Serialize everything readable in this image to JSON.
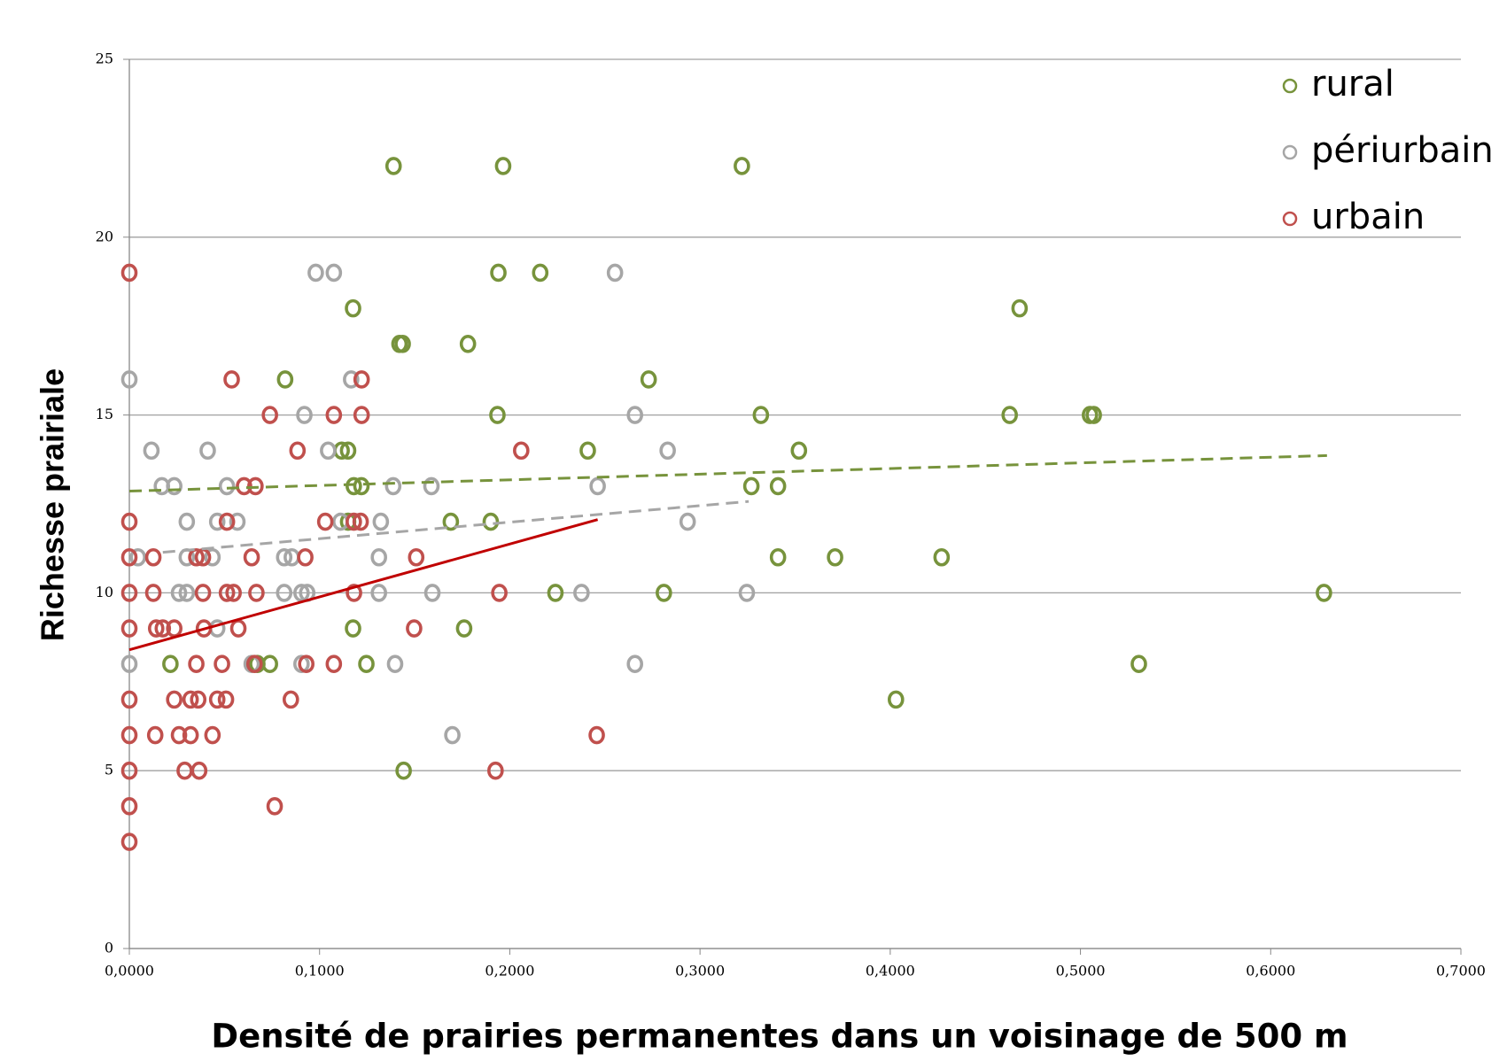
{
  "chart_data": {
    "type": "scatter",
    "x_label": "Densité de prairies permanentes dans un voisinage de 500 m",
    "y_label": "Richesse prairiale",
    "xlim": [
      0,
      0.7
    ],
    "ylim": [
      0,
      25
    ],
    "xticks": [
      {
        "value": 0,
        "label": "0,0000"
      },
      {
        "value": 0.1,
        "label": "0,1000"
      },
      {
        "value": 0.2,
        "label": "0,2000"
      },
      {
        "value": 0.3,
        "label": "0,3000"
      },
      {
        "value": 0.4,
        "label": "0,4000"
      },
      {
        "value": 0.5,
        "label": "0,5000"
      },
      {
        "value": 0.6,
        "label": "0,6000"
      },
      {
        "value": 0.7,
        "label": "0,7000"
      }
    ],
    "yticks": [
      0,
      5,
      10,
      15,
      20,
      25
    ],
    "grid": true,
    "legend": "top-right",
    "series": [
      {
        "name": "rural",
        "color": "#77933c",
        "x": [
          0.1389,
          0.1965,
          0.322,
          0.194,
          0.216,
          0.1176,
          0.468,
          0.142,
          0.1437,
          0.178,
          0.0819,
          0.273,
          0.1935,
          0.332,
          0.4628,
          0.505,
          0.507,
          0.1116,
          0.115,
          0.241,
          0.352,
          0.118,
          0.122,
          0.327,
          0.341,
          0.115,
          0.169,
          0.19,
          0.341,
          0.371,
          0.427,
          0.224,
          0.281,
          0.628,
          0.1176,
          0.176,
          0.0216,
          0.0673,
          0.0739,
          0.1246,
          0.5307,
          0.403,
          0.1442
        ],
        "values": [
          22,
          22,
          22,
          19,
          19,
          18,
          18,
          17,
          17,
          17,
          16,
          16,
          15,
          15,
          15,
          15,
          15,
          14,
          14,
          14,
          14,
          13,
          13,
          13,
          13,
          12,
          12,
          12,
          11,
          11,
          11,
          10,
          10,
          10,
          9,
          9,
          8,
          8,
          8,
          8,
          8,
          7,
          5
        ],
        "trend": {
          "x": [
            0,
            0.6296
          ],
          "y": [
            12.86,
            13.86
          ],
          "dashed": true,
          "color": "#77933c"
        }
      },
      {
        "name": "périurbain",
        "color": "#a6a6a6",
        "x": [
          0.098,
          0.1075,
          0.2553,
          0,
          0.1166,
          0.092,
          0.2658,
          0.0116,
          0.0412,
          0.1045,
          0.283,
          0.0171,
          0.0236,
          0.0513,
          0.1387,
          0.1588,
          0.2462,
          0.0302,
          0.0462,
          0.0568,
          0.111,
          0.1322,
          0.2935,
          0.0045,
          0.0302,
          0.0437,
          0.0814,
          0.0854,
          0.1312,
          0.0261,
          0.0302,
          0.0814,
          0.0905,
          0.0935,
          0.1312,
          0.1593,
          0.2377,
          0.3246,
          0.0462,
          0,
          0.0643,
          0.0905,
          0.1397,
          0.2658,
          0.1698
        ],
        "values": [
          19,
          19,
          19,
          16,
          16,
          15,
          15,
          14,
          14,
          14,
          14,
          13,
          13,
          13,
          13,
          13,
          13,
          12,
          12,
          12,
          12,
          12,
          12,
          11,
          11,
          11,
          11,
          11,
          11,
          10,
          10,
          10,
          10,
          10,
          10,
          10,
          10,
          10,
          9,
          8,
          8,
          8,
          8,
          8,
          6
        ],
        "trend": {
          "x": [
            0.0176,
            0.3256
          ],
          "y": [
            11.14,
            12.57
          ],
          "dashed": true,
          "color": "#a6a6a6"
        }
      },
      {
        "name": "urbain",
        "color": "#c0504d",
        "x": [
          0,
          0.0538,
          0.1221,
          0.0739,
          0.1075,
          0.1221,
          0.0884,
          0.206,
          0.0603,
          0.0663,
          0,
          0.0513,
          0.103,
          0.118,
          0.1216,
          0,
          0.0126,
          0.0352,
          0.0387,
          0.0643,
          0.0925,
          0.1508,
          0,
          0.0126,
          0.0387,
          0.0513,
          0.0548,
          0.0668,
          0.1181,
          0.1945,
          0,
          0.0141,
          0.0176,
          0.0236,
          0.0392,
          0.0573,
          0.1497,
          0.0352,
          0.0487,
          0.0658,
          0.093,
          0.1075,
          0,
          0.0236,
          0.0322,
          0.0362,
          0.0462,
          0.0508,
          0.0849,
          0,
          0.0136,
          0.0261,
          0.0322,
          0.0437,
          0.2457,
          0,
          0.0291,
          0.0367,
          0.1925,
          0,
          0.0764,
          0
        ],
        "values": [
          19,
          16,
          16,
          15,
          15,
          15,
          14,
          14,
          13,
          13,
          12,
          12,
          12,
          12,
          12,
          11,
          11,
          11,
          11,
          11,
          11,
          11,
          10,
          10,
          10,
          10,
          10,
          10,
          10,
          10,
          9,
          9,
          9,
          9,
          9,
          9,
          9,
          8,
          8,
          8,
          8,
          8,
          7,
          7,
          7,
          7,
          7,
          7,
          7,
          6,
          6,
          6,
          6,
          6,
          6,
          5,
          5,
          5,
          5,
          4,
          4,
          3
        ],
        "trend": {
          "x": [
            0,
            0.2462
          ],
          "y": [
            8.4,
            12.06
          ],
          "dashed": false,
          "color": "#c00000"
        }
      }
    ]
  }
}
